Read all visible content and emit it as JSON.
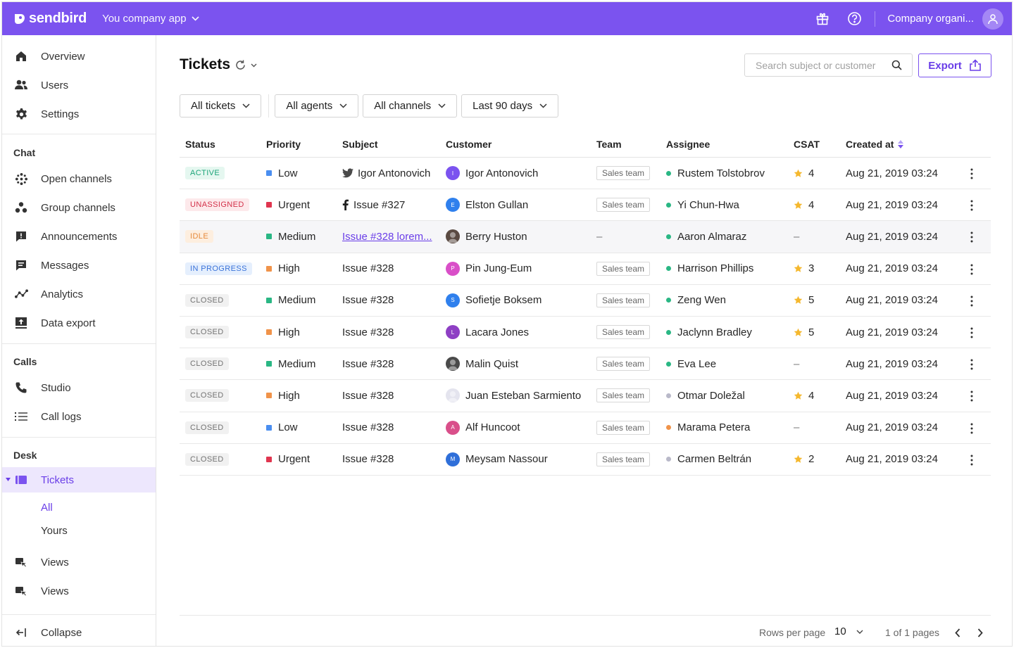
{
  "header": {
    "brand": "sendbird",
    "app_name": "You company app",
    "org_name": "Company organi...",
    "accent_color": "#7b53ef",
    "icons": [
      "gift-icon",
      "help-icon",
      "user-icon"
    ]
  },
  "sidebar": {
    "top_items": [
      {
        "label": "Overview",
        "icon": "home-icon"
      },
      {
        "label": "Users",
        "icon": "users-icon"
      },
      {
        "label": "Settings",
        "icon": "gear-icon"
      }
    ],
    "chat": {
      "label": "Chat",
      "items": [
        {
          "label": "Open channels",
          "icon": "open-channels-icon"
        },
        {
          "label": "Group channels",
          "icon": "group-channels-icon"
        },
        {
          "label": "Announcements",
          "icon": "announcement-icon"
        },
        {
          "label": "Messages",
          "icon": "message-icon"
        },
        {
          "label": "Analytics",
          "icon": "analytics-icon"
        },
        {
          "label": "Data export",
          "icon": "data-export-icon"
        }
      ]
    },
    "calls": {
      "label": "Calls",
      "items": [
        {
          "label": "Studio",
          "icon": "phone-icon"
        },
        {
          "label": "Call logs",
          "icon": "list-icon"
        }
      ]
    },
    "desk": {
      "label": "Desk",
      "tickets_label": "Tickets",
      "sub_items": [
        "All",
        "Yours"
      ],
      "views": [
        "Views",
        "Views"
      ]
    },
    "collapse_label": "Collapse"
  },
  "main": {
    "title": "Tickets",
    "search_placeholder": "Search subject or customer",
    "export_label": "Export",
    "filters": [
      "All tickets",
      "All agents",
      "All channels",
      "Last 90 days"
    ]
  },
  "table": {
    "columns": [
      "Status",
      "Priority",
      "Subject",
      "Customer",
      "Team",
      "Assignee",
      "CSAT",
      "Created at"
    ],
    "rows": [
      {
        "status": "ACTIVE",
        "status_kind": "active",
        "priority": "Low",
        "priority_color": "#4a8ef0",
        "subject": "Igor Antonovich",
        "subject_icon": "twitter-icon",
        "customer": "Igor Antonovich",
        "cust_initial": "I",
        "cust_color": "#7b53ef",
        "team": "Sales team",
        "assignee": "Rustem Tolstobrov",
        "assignee_color": "#2ab784",
        "csat": "4",
        "created": "Aug 21, 2019 03:24"
      },
      {
        "status": "UNASSIGNED",
        "status_kind": "unassigned",
        "priority": "Urgent",
        "priority_color": "#e0354f",
        "subject": "Issue #327",
        "subject_icon": "facebook-icon",
        "customer": "Elston Gullan",
        "cust_initial": "E",
        "cust_color": "#2f80ed",
        "team": "Sales team",
        "assignee": "Yi Chun-Hwa",
        "assignee_color": "#2ab784",
        "csat": "4",
        "created": "Aug 21, 2019 03:24"
      },
      {
        "status": "IDLE",
        "status_kind": "idle",
        "priority": "Medium",
        "priority_color": "#2ab784",
        "subject": "Issue #328 lorem...",
        "subject_icon": "",
        "customer": "Berry Huston",
        "cust_initial": "",
        "cust_color": "#5a4a42",
        "team": "",
        "assignee": "Aaron Almaraz",
        "assignee_color": "#2ab784",
        "csat": "",
        "created": "Aug 21, 2019 03:24"
      },
      {
        "status": "IN PROGRESS",
        "status_kind": "progress",
        "priority": "High",
        "priority_color": "#f0934a",
        "subject": "Issue #328",
        "subject_icon": "",
        "customer": "Pin Jung-Eum",
        "cust_initial": "P",
        "cust_color": "#d94fc8",
        "team": "Sales team",
        "assignee": "Harrison Phillips",
        "assignee_color": "#2ab784",
        "csat": "3",
        "created": "Aug 21, 2019 03:24"
      },
      {
        "status": "CLOSED",
        "status_kind": "closed",
        "priority": "Medium",
        "priority_color": "#2ab784",
        "subject": "Issue #328",
        "subject_icon": "",
        "customer": "Sofietje Boksem",
        "cust_initial": "S",
        "cust_color": "#2f80ed",
        "team": "Sales team",
        "assignee": "Zeng Wen",
        "assignee_color": "#2ab784",
        "csat": "5",
        "created": "Aug 21, 2019 03:24"
      },
      {
        "status": "CLOSED",
        "status_kind": "closed",
        "priority": "High",
        "priority_color": "#f0934a",
        "subject": "Issue #328",
        "subject_icon": "",
        "customer": "Lacara Jones",
        "cust_initial": "L",
        "cust_color": "#8e3fc4",
        "team": "Sales team",
        "assignee": "Jaclynn Bradley",
        "assignee_color": "#2ab784",
        "csat": "5",
        "created": "Aug 21, 2019 03:24"
      },
      {
        "status": "CLOSED",
        "status_kind": "closed",
        "priority": "Medium",
        "priority_color": "#2ab784",
        "subject": "Issue #328",
        "subject_icon": "",
        "customer": "Malin Quist",
        "cust_initial": "",
        "cust_color": "#4a4a4a",
        "team": "Sales team",
        "assignee": "Eva Lee",
        "assignee_color": "#2ab784",
        "csat": "",
        "created": "Aug 21, 2019 03:24"
      },
      {
        "status": "CLOSED",
        "status_kind": "closed",
        "priority": "High",
        "priority_color": "#f0934a",
        "subject": "Issue #328",
        "subject_icon": "",
        "customer": "Juan Esteban Sarmiento",
        "cust_initial": "",
        "cust_color": "#e4e4ee",
        "team": "Sales team",
        "assignee": "Otmar Doležal",
        "assignee_color": "#b9b9c9",
        "csat": "4",
        "created": "Aug 21, 2019 03:24"
      },
      {
        "status": "CLOSED",
        "status_kind": "closed",
        "priority": "Low",
        "priority_color": "#4a8ef0",
        "subject": "Issue #328",
        "subject_icon": "",
        "customer": "Alf Huncoot",
        "cust_initial": "A",
        "cust_color": "#d94f8a",
        "team": "Sales team",
        "assignee": "Marama Petera",
        "assignee_color": "#f0934a",
        "csat": "",
        "created": "Aug 21, 2019 03:24"
      },
      {
        "status": "CLOSED",
        "status_kind": "closed",
        "priority": "Urgent",
        "priority_color": "#e0354f",
        "subject": "Issue #328",
        "subject_icon": "",
        "customer": "Meysam Nassour",
        "cust_initial": "M",
        "cust_color": "#2f6fd9",
        "team": "Sales team",
        "assignee": "Carmen Beltrán",
        "assignee_color": "#b9b9c9",
        "csat": "2",
        "created": "Aug 21, 2019 03:24"
      }
    ]
  },
  "pagination": {
    "rows_label": "Rows per page",
    "rows_value": "10",
    "pages_text": "1 of 1 pages"
  }
}
